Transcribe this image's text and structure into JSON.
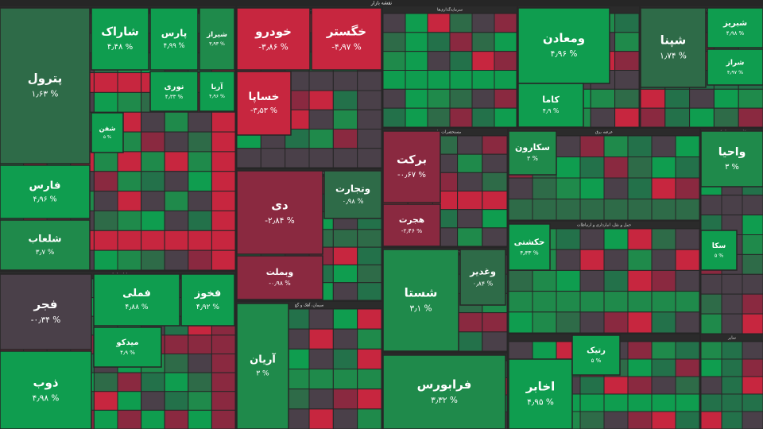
{
  "chart_data": {
    "type": "treemap",
    "title": "نقشه بازار",
    "sectors": [
      {
        "name": "شیمیایی",
        "labels": [
          "پترول",
          "فارس",
          "شلعاب",
          "شاراک",
          "پارس",
          "شیراز",
          "نوری",
          "آریا",
          "شفن"
        ],
        "values": [
          1.63,
          4.96,
          3.7,
          4.48,
          4.99,
          3.93,
          4.33,
          4.96,
          5
        ],
        "value_labels": [
          "۱٫۶۳ %",
          "۴٫۹۶ %",
          "۳٫۷ %",
          "۴٫۴۸ %",
          "۴٫۹۹ %",
          "۳٫۹۳ %",
          "۴٫۳۳ %",
          "۴٫۹۶ %",
          "۵ %"
        ]
      },
      {
        "name": "فلزات اساسی",
        "labels": [
          "فجر",
          "ذوب",
          "فملی",
          "فخوز",
          "میدکو"
        ],
        "values": [
          -0.34,
          4.98,
          4.88,
          4.92,
          4.9
        ],
        "value_labels": [
          "-۰٫۳۴ %",
          "۴٫۹۸ %",
          "۴٫۸۸ %",
          "۴٫۹۲ %",
          "۴٫۹ %"
        ]
      },
      {
        "name": "خودرو و ساخت قطعات",
        "labels": [
          "خودرو",
          "خگستر",
          "خساپا"
        ],
        "values": [
          -3.86,
          -4.97,
          -3.53
        ],
        "value_labels": [
          "-۳٫۸۶ %",
          "-۴٫۹۷ %",
          "-۳٫۵۳ %"
        ]
      },
      {
        "name": "بانک‌ها و موسسات اعتباری",
        "labels": [
          "دی",
          "وتجارت",
          "وبملت"
        ],
        "values": [
          -2.84,
          0.98,
          -0.98
        ],
        "value_labels": [
          "-۲٫۸۴ %",
          "۰٫۹۸ %",
          "-۰٫۹۸ %"
        ]
      },
      {
        "name": "سیمان، آهک و گچ",
        "labels": [
          "آریان"
        ],
        "values": [
          3
        ],
        "value_labels": [
          "۳ %"
        ]
      },
      {
        "name": "سرمایه‌گذاری‌ها",
        "labels": [],
        "values": [],
        "value_labels": []
      },
      {
        "name": "استخراج کانه‌های فلزی",
        "labels": [
          "ومعادن",
          "کاما"
        ],
        "values": [
          4.96,
          4.9
        ],
        "value_labels": [
          "۴٫۹۶ %",
          "۴٫۹ %"
        ]
      },
      {
        "name": "فراورده‌های نفتی",
        "labels": [
          "شپنا",
          "شبریز",
          "شراز"
        ],
        "values": [
          1.74,
          4.98,
          4.97
        ],
        "value_labels": [
          "۱٫۷۴ %",
          "۴٫۹۸ %",
          "۴٫۹۷ %"
        ]
      },
      {
        "name": "مستحضرات دارویی",
        "labels": [
          "برکت",
          "هجرت"
        ],
        "values": [
          -0.67,
          -2.46
        ],
        "value_labels": [
          "-۰٫۶۷ %",
          "-۲٫۴۶ %"
        ]
      },
      {
        "name": "شرکت‌های چندرشته‌ای صنعتی",
        "labels": [
          "شستا",
          "وغدیر"
        ],
        "values": [
          3.1,
          0.84
        ],
        "value_labels": [
          "۳٫۱ %",
          "۰٫۸۴ %"
        ]
      },
      {
        "name": "فعالیت‌های کمکی به نهادهای مالی",
        "labels": [
          "فرابورس"
        ],
        "values": [
          3.32
        ],
        "value_labels": [
          "۳٫۳۲ %"
        ]
      },
      {
        "name": "عرضه برق",
        "labels": [
          "سکارون"
        ],
        "values": [
          3
        ],
        "value_labels": [
          "۳ %"
        ]
      },
      {
        "name": "حمل و نقل، انبارداری و ارتباطات",
        "labels": [
          "حکشتی"
        ],
        "values": [
          4.33
        ],
        "value_labels": [
          "۴٫۳۳ %"
        ]
      },
      {
        "name": "مخابرات",
        "labels": [
          "اخابر",
          "رتیک"
        ],
        "values": [
          4.95,
          5
        ],
        "value_labels": [
          "۴٫۹۵ %",
          "۵ %"
        ]
      },
      {
        "name": "کاشی و سرامیک",
        "labels": [
          "واحیا",
          "سکا"
        ],
        "values": [
          3,
          5
        ],
        "value_labels": [
          "۳ %",
          "۵ %"
        ]
      },
      {
        "name": "سایر",
        "labels": [],
        "values": [],
        "value_labels": []
      }
    ]
  }
}
